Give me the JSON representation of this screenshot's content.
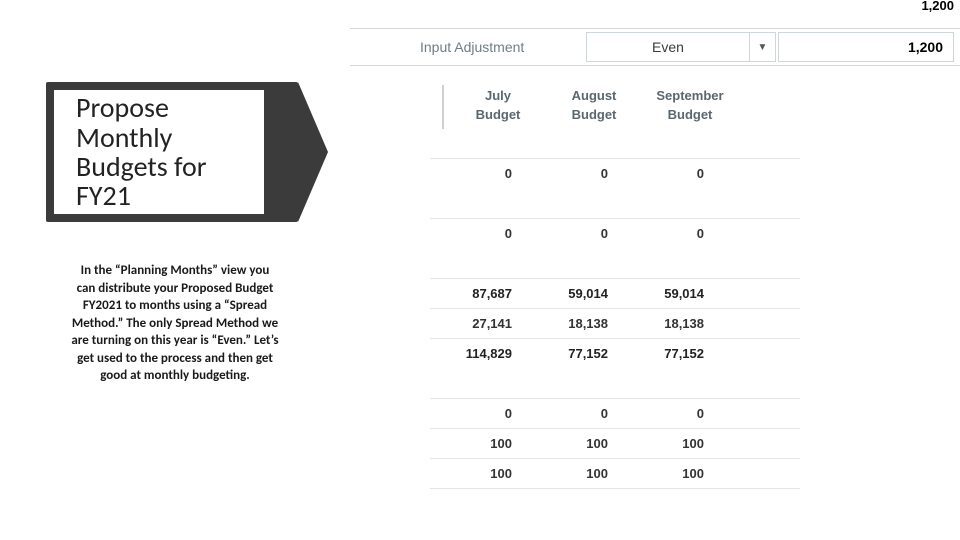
{
  "top_crop_value": "1,200",
  "adjustment": {
    "label": "Input Adjustment",
    "select_value": "Even",
    "input_value": "1,200"
  },
  "months_header": {
    "months": [
      "July",
      "August",
      "September"
    ],
    "sub": [
      "Budget",
      "Budget",
      "Budget"
    ]
  },
  "rows": [
    {
      "bold": false,
      "cells": [
        "0",
        "0",
        "0"
      ]
    },
    {
      "spacer": true
    },
    {
      "bold": false,
      "cells": [
        "0",
        "0",
        "0"
      ]
    },
    {
      "spacer": true
    },
    {
      "bold": true,
      "cells": [
        "87,687",
        "59,014",
        "59,014"
      ]
    },
    {
      "bold": false,
      "cells": [
        "27,141",
        "18,138",
        "18,138"
      ]
    },
    {
      "bold": true,
      "cells": [
        "114,829",
        "77,152",
        "77,152"
      ]
    },
    {
      "spacer": true
    },
    {
      "bold": false,
      "cells": [
        "0",
        "0",
        "0"
      ]
    },
    {
      "bold": false,
      "cells": [
        "100",
        "100",
        "100"
      ]
    },
    {
      "bold": false,
      "cells": [
        "100",
        "100",
        "100"
      ]
    }
  ],
  "callout": {
    "title": "Propose Monthly Budgets for FY21",
    "description": "In the “Planning Months” view you can distribute your Proposed Budget FY2021 to months using a “Spread Method.” The only Spread Method we are turning on this year is “Even.” Let’s get used to the process and then get good at monthly budgeting."
  },
  "colors": {
    "callout_bg": "#3b3b3b",
    "border": "#e2e6e8",
    "header_text": "#5a676f"
  }
}
